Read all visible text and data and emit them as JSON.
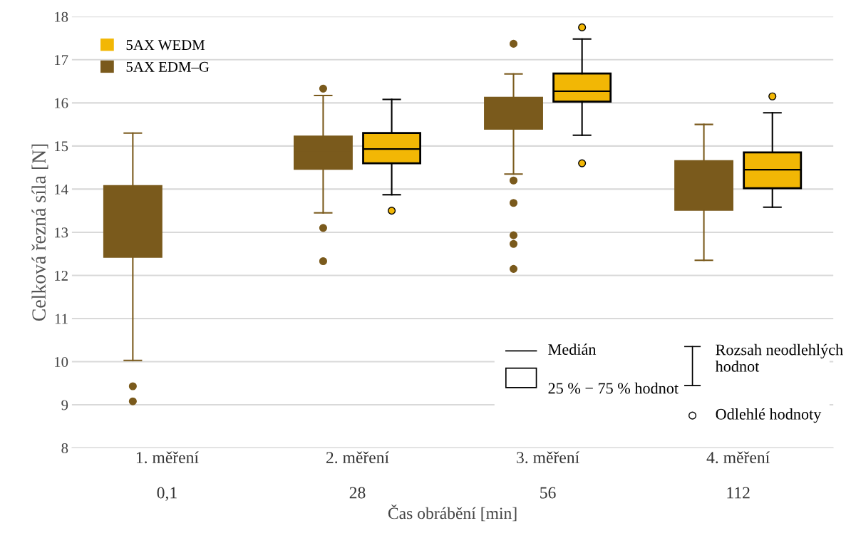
{
  "chart_data": {
    "type": "box",
    "ylabel": "Celková řezná síla [N]",
    "xlabel": "Čas obrábění [min]",
    "categories": [
      "1. měření\n\n0,1",
      "2. měření\n\n28",
      "3. měření\n\n56",
      "4. měření\n\n112"
    ],
    "series": [
      {
        "name": "5AX WEDM",
        "color": "#f2b705",
        "boxes": [
          null,
          {
            "low": 13.87,
            "q1": 14.6,
            "median": 14.93,
            "q3": 15.3,
            "high": 16.08,
            "outliers": [
              13.5
            ]
          },
          {
            "low": 15.25,
            "q1": 16.03,
            "median": 16.27,
            "q3": 16.68,
            "high": 17.48,
            "outliers": [
              17.75,
              14.6
            ]
          },
          {
            "low": 13.58,
            "q1": 14.02,
            "median": 14.45,
            "q3": 14.85,
            "high": 15.77,
            "outliers": [
              16.15
            ]
          }
        ]
      },
      {
        "name": "5AX EDM–G",
        "color": "#7a5a1c",
        "boxes": [
          {
            "low": 10.03,
            "q1": 12.43,
            "median": 13.27,
            "q3": 14.07,
            "high": 15.3,
            "outliers": [
              9.43,
              9.08
            ]
          },
          {
            "low": 13.45,
            "q1": 14.47,
            "median": 14.86,
            "q3": 15.22,
            "high": 16.17,
            "outliers": [
              16.33,
              13.1,
              12.33
            ]
          },
          {
            "low": 14.35,
            "q1": 15.4,
            "median": 15.8,
            "q3": 16.12,
            "high": 16.67,
            "outliers": [
              17.37,
              14.2,
              13.68,
              12.93,
              12.73,
              12.15
            ]
          },
          {
            "low": 12.35,
            "q1": 13.52,
            "median": 14.07,
            "q3": 14.65,
            "high": 15.5
          }
        ]
      }
    ],
    "ylim": [
      8,
      18
    ],
    "yticks": [
      8,
      9,
      10,
      11,
      12,
      13,
      14,
      15,
      16,
      17,
      18
    ],
    "grid": "y",
    "legend": "top left",
    "annotations": [
      "Medián",
      "25 % − 75 % hodnot",
      "Rozsah neodlehlých hodnot",
      "Odlehlé hodnoty"
    ]
  }
}
